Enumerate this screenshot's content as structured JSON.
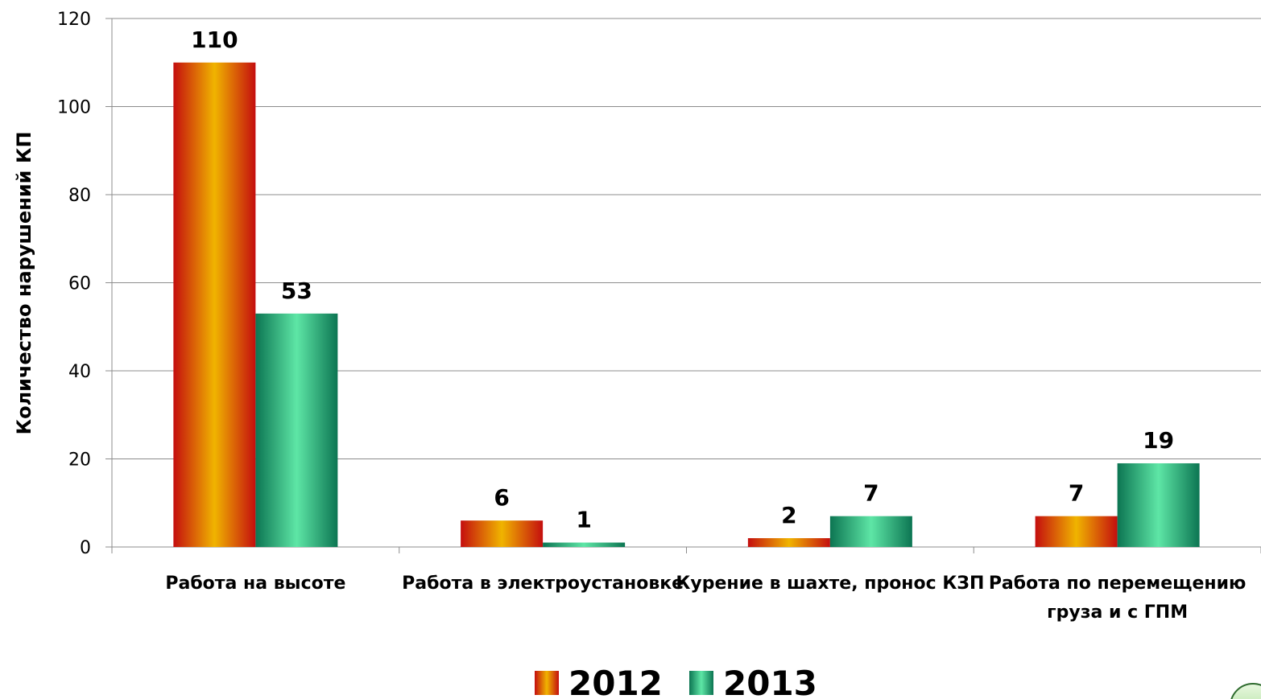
{
  "chart_data": {
    "type": "bar",
    "categories": [
      [
        "Работа на высоте"
      ],
      [
        "Работа в электроустановке"
      ],
      [
        "Курение в шахте, пронос КЗП"
      ],
      [
        "Работа по перемещению",
        "груза и с ГПМ"
      ]
    ],
    "series": [
      {
        "name": "2012",
        "values": [
          110,
          6,
          2,
          7
        ],
        "color": "#d42a0a"
      },
      {
        "name": "2013",
        "values": [
          53,
          1,
          7,
          19
        ],
        "color": "#1b8f62"
      }
    ],
    "ylabel": "Количество нарушений КП",
    "xlabel": "",
    "title": "",
    "ylim": [
      0,
      120
    ],
    "yticks": [
      0,
      20,
      40,
      60,
      80,
      100,
      120
    ],
    "grid": true,
    "legend_position": "bottom"
  }
}
